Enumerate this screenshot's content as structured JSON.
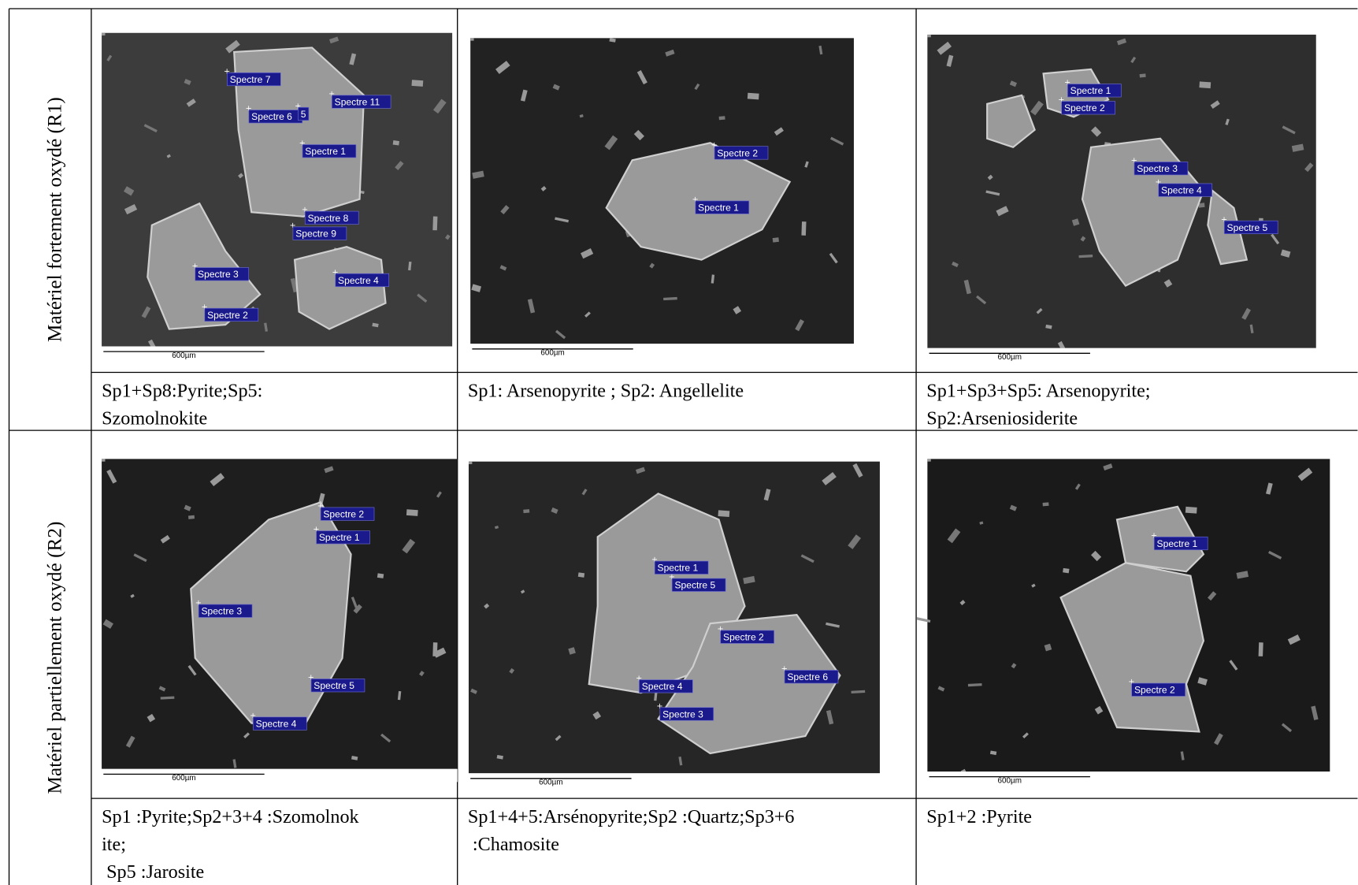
{
  "rows": [
    {
      "header": "Matériel fortement oxydé (R1)",
      "cells": [
        {
          "image": {
            "scale": "600µm",
            "labels": [
              "Spectre 7",
              "Spectre 6",
              "5",
              "Spectre 11",
              "Spectre 1",
              "Spectre 8",
              "Spectre 9",
              "Spectre 3",
              "Spectre 4",
              "Spectre 2"
            ]
          },
          "caption": [
            "Sp1+Sp8:Pyrite;Sp5:",
            "Szomolnokite"
          ]
        },
        {
          "image": {
            "scale": "600µm",
            "labels": [
              "Spectre 2",
              "Spectre 1"
            ]
          },
          "caption": [
            "Sp1: Arsenopyrite ; Sp2: Angellelite"
          ]
        },
        {
          "image": {
            "scale": "600µm",
            "labels": [
              "Spectre 1",
              "Spectre 2",
              "Spectre 3",
              "Spectre 4",
              "Spectre 5"
            ]
          },
          "caption": [
            "Sp1+Sp3+Sp5: Arsenopyrite;",
            "Sp2:Arseniosiderite"
          ]
        }
      ]
    },
    {
      "header": "Matériel partiellement oxydé (R2)",
      "cells": [
        {
          "image": {
            "scale": "600µm",
            "labels": [
              "Spectre 2",
              "Spectre 1",
              "Spectre 3",
              "Spectre 5",
              "Spectre 4"
            ]
          },
          "caption": [
            "Sp1 :Pyrite;Sp2+3+4 :Szomolnok",
            "ite;",
            " Sp5 :Jarosite"
          ]
        },
        {
          "image": {
            "scale": "600µm",
            "labels": [
              "Spectre 1",
              "Spectre 5",
              "Spectre 2",
              "Spectre 6",
              "Spectre 4",
              "Spectre 3"
            ]
          },
          "caption": [
            "Sp1+4+5:Arsénopyrite;Sp2 :Quartz;Sp3+6",
            " :Chamosite"
          ]
        },
        {
          "image": {
            "scale": "600µm",
            "labels": [
              "Spectre 1",
              "Spectre 2"
            ]
          },
          "caption": [
            "Sp1+2 :Pyrite"
          ]
        }
      ]
    }
  ]
}
